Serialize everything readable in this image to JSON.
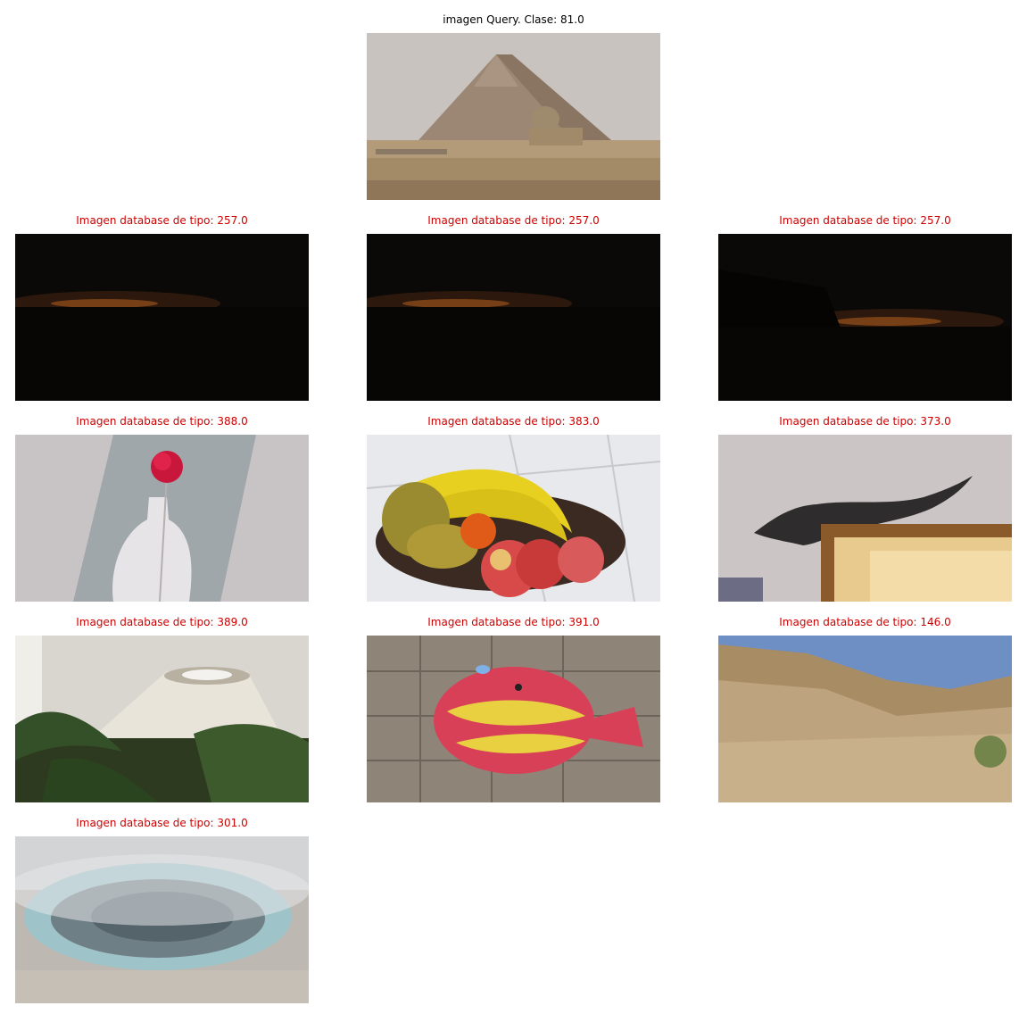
{
  "query": {
    "title": "imagen Query. Clase: 81.0",
    "title_color": "#000000",
    "image": "pyramid-sphinx-photo"
  },
  "results_title_color": "#cc0000",
  "results": [
    {
      "title": "Imagen database de tipo: 257.0",
      "image": "night-horizon-glow-photo"
    },
    {
      "title": "Imagen database de tipo: 257.0",
      "image": "night-horizon-glow-photo"
    },
    {
      "title": "Imagen database de tipo: 257.0",
      "image": "night-horizon-glow-photo"
    },
    {
      "title": "Imagen database de tipo: 388.0",
      "image": "red-flower-vase-painting-photo"
    },
    {
      "title": "Imagen database de tipo: 383.0",
      "image": "fruit-bowl-bananas-photo"
    },
    {
      "title": "Imagen database de tipo: 373.0",
      "image": "dinosaur-shadow-photo"
    },
    {
      "title": "Imagen database de tipo: 389.0",
      "image": "lampshade-ferns-photo"
    },
    {
      "title": "Imagen database de tipo: 391.0",
      "image": "fish-plush-toy-photo"
    },
    {
      "title": "Imagen database de tipo: 146.0",
      "image": "rocky-canyon-photo"
    },
    {
      "title": "Imagen database de tipo: 301.0",
      "image": "hot-spring-steam-photo"
    }
  ]
}
